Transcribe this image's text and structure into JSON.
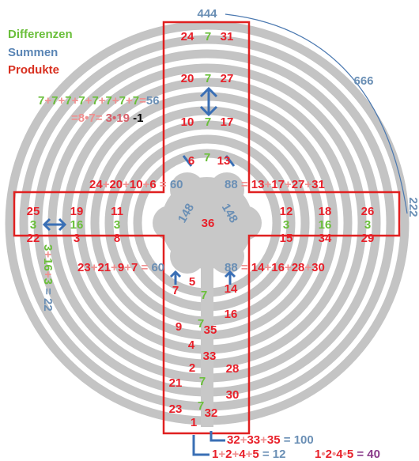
{
  "legend": {
    "differences": "Differenzen",
    "sums": "Summen",
    "products": "Produkte"
  },
  "arcs": {
    "top": "444",
    "right": "666",
    "edge": "222"
  },
  "top_arm": [
    [
      24,
      7,
      31
    ],
    [
      20,
      7,
      27
    ],
    [
      10,
      7,
      17
    ]
  ],
  "left_arm": [
    [
      25,
      3,
      22
    ],
    [
      19,
      16,
      3
    ],
    [
      11,
      3,
      8
    ]
  ],
  "right_arm": [
    [
      12,
      3,
      15
    ],
    [
      18,
      16,
      34
    ],
    [
      26,
      3,
      29
    ]
  ],
  "center": {
    "upper": [
      6,
      7,
      13
    ],
    "middle": 36,
    "diagonals": [
      "148",
      "148"
    ]
  },
  "lower_arm": [
    5,
    7,
    7,
    14,
    16,
    9,
    7,
    35,
    4,
    33,
    2,
    28,
    21,
    7,
    30,
    23,
    7,
    32,
    1
  ],
  "equations": [
    {
      "parts": [
        "7",
        "+",
        "7",
        "+",
        "7",
        "+",
        "7",
        "+",
        "7",
        "+",
        "7",
        "+",
        "7",
        "+",
        "7",
        "=",
        "56"
      ],
      "colors": [
        "#6abf3a",
        "#f09090",
        "#6abf3a",
        "#f09090",
        "#6abf3a",
        "#f09090",
        "#6abf3a",
        "#f09090",
        "#6abf3a",
        "#f09090",
        "#6abf3a",
        "#f09090",
        "#6abf3a",
        "#f09090",
        "#6abf3a",
        "#f09090",
        "#6a8fb5"
      ]
    },
    {
      "parts": [
        "=8•7=",
        " 3•19",
        " -1"
      ],
      "colors": [
        "#f09090",
        "#d8606a",
        "#000000"
      ]
    },
    {
      "parts": [
        "24",
        "+",
        "20",
        "+",
        "10",
        "+",
        "6",
        " = ",
        "60"
      ],
      "colors": [
        "#e8202a",
        "#f09090",
        "#e8202a",
        "#f09090",
        "#e8202a",
        "#f09090",
        "#e8202a",
        "#f09090",
        "#6a8fb5"
      ]
    },
    {
      "parts": [
        "88",
        " = ",
        "13",
        "+",
        "17",
        "+",
        "27",
        "+",
        "31"
      ],
      "colors": [
        "#6a8fb5",
        "#f09090",
        "#e8202a",
        "#f09090",
        "#e8202a",
        "#f09090",
        "#e8202a",
        "#f09090",
        "#e8202a"
      ]
    },
    {
      "parts": [
        "23",
        "+",
        "21",
        "+",
        "9",
        "+",
        "7",
        " = ",
        "60"
      ],
      "colors": [
        "#e8202a",
        "#f09090",
        "#e8202a",
        "#f09090",
        "#e8202a",
        "#f09090",
        "#e8202a",
        "#f09090",
        "#6a8fb5"
      ]
    },
    {
      "parts": [
        "88",
        " = ",
        "14",
        "+",
        "16",
        "+",
        "28",
        "+",
        "30"
      ],
      "colors": [
        "#6a8fb5",
        "#f09090",
        "#e8202a",
        "#f09090",
        "#e8202a",
        "#f09090",
        "#e8202a",
        "#f09090",
        "#e8202a"
      ]
    },
    {
      "parts": [
        "3",
        "+",
        "16",
        "+",
        "3",
        " = ",
        "22"
      ],
      "colors": [
        "#6abf3a",
        "#f09090",
        "#6abf3a",
        "#f09090",
        "#6abf3a",
        "#6a8fb5",
        "#6a8fb5"
      ]
    },
    {
      "parts": [
        "32",
        "+",
        "33",
        "+",
        "35",
        " = ",
        "100"
      ],
      "colors": [
        "#e8202a",
        "#f09090",
        "#e8202a",
        "#f09090",
        "#e8202a",
        "#6a8fb5",
        "#6a8fb5"
      ]
    },
    {
      "parts": [
        "1",
        "+",
        "2",
        "+",
        "4",
        "+",
        "5",
        " = ",
        "12"
      ],
      "colors": [
        "#e8202a",
        "#f09090",
        "#e8202a",
        "#f09090",
        "#e8202a",
        "#f09090",
        "#e8202a",
        "#6a8fb5",
        "#6a8fb5"
      ]
    },
    {
      "parts": [
        "1",
        "•",
        "2",
        "•",
        "4",
        "•",
        "5",
        " = ",
        "40"
      ],
      "colors": [
        "#e8202a",
        "#f09090",
        "#e8202a",
        "#f09090",
        "#e8202a",
        "#f09090",
        "#e8202a",
        "#8a3a8a",
        "#8a3a8a"
      ]
    }
  ]
}
